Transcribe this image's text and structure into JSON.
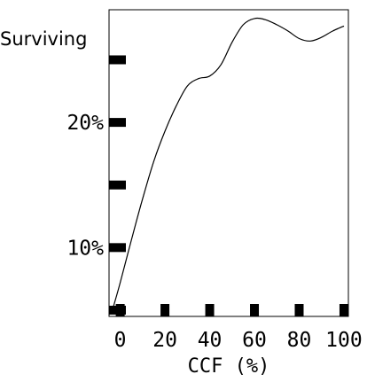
{
  "chart_data": {
    "type": "line",
    "title": "",
    "xlabel": "CCF (%)",
    "ylabel": "Surviving",
    "xlim": [
      -5,
      102
    ],
    "ylim": [
      4.5,
      29
    ],
    "x_ticks": [
      0,
      20,
      40,
      60,
      80,
      100
    ],
    "x_tick_labels": [
      "0",
      "20",
      "40",
      "60",
      "80",
      "100"
    ],
    "y_ticks": [
      5,
      10,
      15,
      20,
      25
    ],
    "y_tick_labels": [
      "",
      "10%",
      "",
      "20%",
      ""
    ],
    "grid": false,
    "legend": "none",
    "line_color": "#000000",
    "series": [
      {
        "x": [
          -3,
          0,
          5,
          10,
          15,
          20,
          25,
          30,
          35,
          40,
          45,
          50,
          55,
          60,
          65,
          70,
          75,
          80,
          85,
          90,
          95,
          100
        ],
        "y": [
          5.3,
          7.2,
          10.6,
          13.9,
          16.9,
          19.3,
          21.3,
          22.9,
          23.5,
          23.7,
          24.6,
          26.4,
          27.8,
          28.3,
          28.2,
          27.8,
          27.3,
          26.7,
          26.5,
          26.8,
          27.3,
          27.7
        ]
      }
    ]
  }
}
